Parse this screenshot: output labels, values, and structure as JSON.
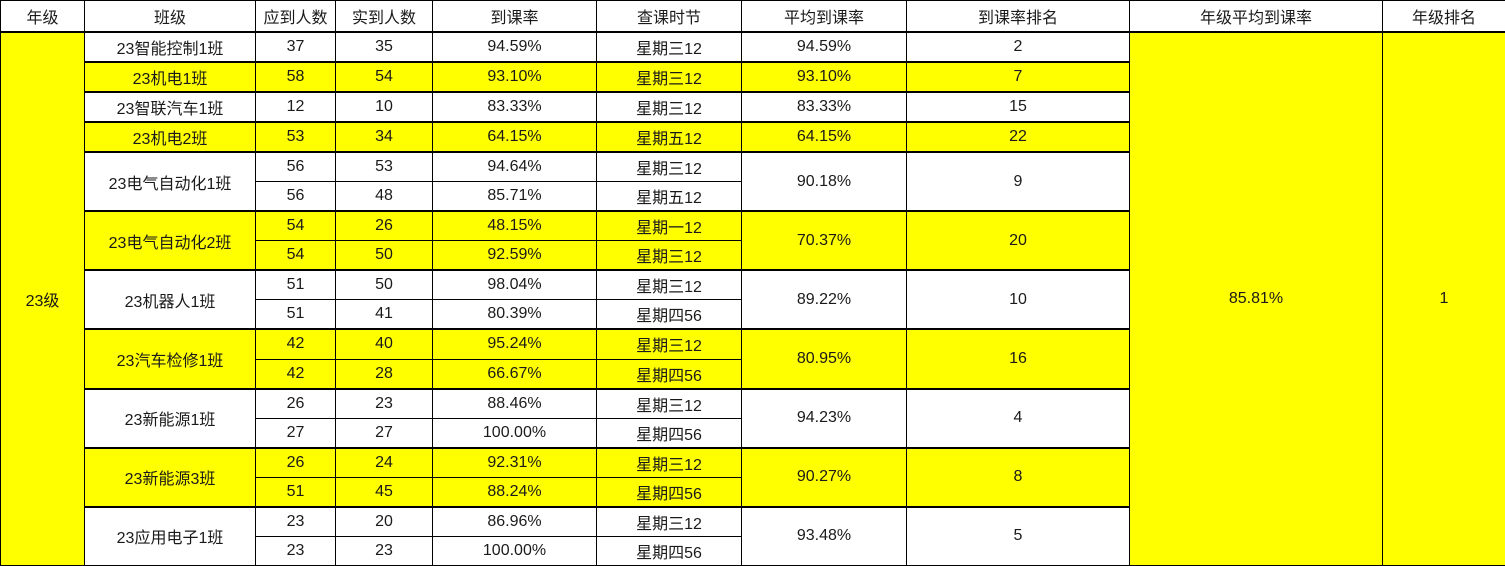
{
  "colors": {
    "highlight": "#FFFF00",
    "border": "#000000",
    "text": "#1a1a1a",
    "background": "#FFFFFF"
  },
  "table": {
    "headers": [
      "年级",
      "班级",
      "应到人数",
      "实到人数",
      "到课率",
      "查课时节",
      "平均到课率",
      "到课率排名",
      "年级平均到课率",
      "年级排名"
    ],
    "grade": {
      "label": "23级",
      "avg": "85.81%",
      "rank": "1"
    },
    "classes": [
      {
        "name": "23智能控制1班",
        "highlight": false,
        "avg": "94.59%",
        "rank": "2",
        "sessions": [
          {
            "expected": "37",
            "actual": "35",
            "rate": "94.59%",
            "time": "星期三12"
          }
        ]
      },
      {
        "name": "23机电1班",
        "highlight": true,
        "avg": "93.10%",
        "rank": "7",
        "sessions": [
          {
            "expected": "58",
            "actual": "54",
            "rate": "93.10%",
            "time": "星期三12"
          }
        ]
      },
      {
        "name": "23智联汽车1班",
        "highlight": false,
        "avg": "83.33%",
        "rank": "15",
        "sessions": [
          {
            "expected": "12",
            "actual": "10",
            "rate": "83.33%",
            "time": "星期三12"
          }
        ]
      },
      {
        "name": "23机电2班",
        "highlight": true,
        "avg": "64.15%",
        "rank": "22",
        "sessions": [
          {
            "expected": "53",
            "actual": "34",
            "rate": "64.15%",
            "time": "星期五12"
          }
        ]
      },
      {
        "name": "23电气自动化1班",
        "highlight": false,
        "avg": "90.18%",
        "rank": "9",
        "sessions": [
          {
            "expected": "56",
            "actual": "53",
            "rate": "94.64%",
            "time": "星期三12"
          },
          {
            "expected": "56",
            "actual": "48",
            "rate": "85.71%",
            "time": "星期五12"
          }
        ]
      },
      {
        "name": "23电气自动化2班",
        "highlight": true,
        "avg": "70.37%",
        "rank": "20",
        "sessions": [
          {
            "expected": "54",
            "actual": "26",
            "rate": "48.15%",
            "time": "星期一12"
          },
          {
            "expected": "54",
            "actual": "50",
            "rate": "92.59%",
            "time": "星期三12"
          }
        ]
      },
      {
        "name": "23机器人1班",
        "highlight": false,
        "avg": "89.22%",
        "rank": "10",
        "sessions": [
          {
            "expected": "51",
            "actual": "50",
            "rate": "98.04%",
            "time": "星期三12"
          },
          {
            "expected": "51",
            "actual": "41",
            "rate": "80.39%",
            "time": "星期四56"
          }
        ]
      },
      {
        "name": "23汽车检修1班",
        "highlight": true,
        "avg": "80.95%",
        "rank": "16",
        "sessions": [
          {
            "expected": "42",
            "actual": "40",
            "rate": "95.24%",
            "time": "星期三12"
          },
          {
            "expected": "42",
            "actual": "28",
            "rate": "66.67%",
            "time": "星期四56"
          }
        ]
      },
      {
        "name": "23新能源1班",
        "highlight": false,
        "avg": "94.23%",
        "rank": "4",
        "sessions": [
          {
            "expected": "26",
            "actual": "23",
            "rate": "88.46%",
            "time": "星期三12"
          },
          {
            "expected": "27",
            "actual": "27",
            "rate": "100.00%",
            "time": "星期四56"
          }
        ]
      },
      {
        "name": "23新能源3班",
        "highlight": true,
        "avg": "90.27%",
        "rank": "8",
        "sessions": [
          {
            "expected": "26",
            "actual": "24",
            "rate": "92.31%",
            "time": "星期三12"
          },
          {
            "expected": "51",
            "actual": "45",
            "rate": "88.24%",
            "time": "星期四56"
          }
        ]
      },
      {
        "name": "23应用电子1班",
        "highlight": false,
        "avg": "93.48%",
        "rank": "5",
        "sessions": [
          {
            "expected": "23",
            "actual": "20",
            "rate": "86.96%",
            "time": "星期三12"
          },
          {
            "expected": "23",
            "actual": "23",
            "rate": "100.00%",
            "time": "星期四56"
          }
        ]
      }
    ]
  }
}
